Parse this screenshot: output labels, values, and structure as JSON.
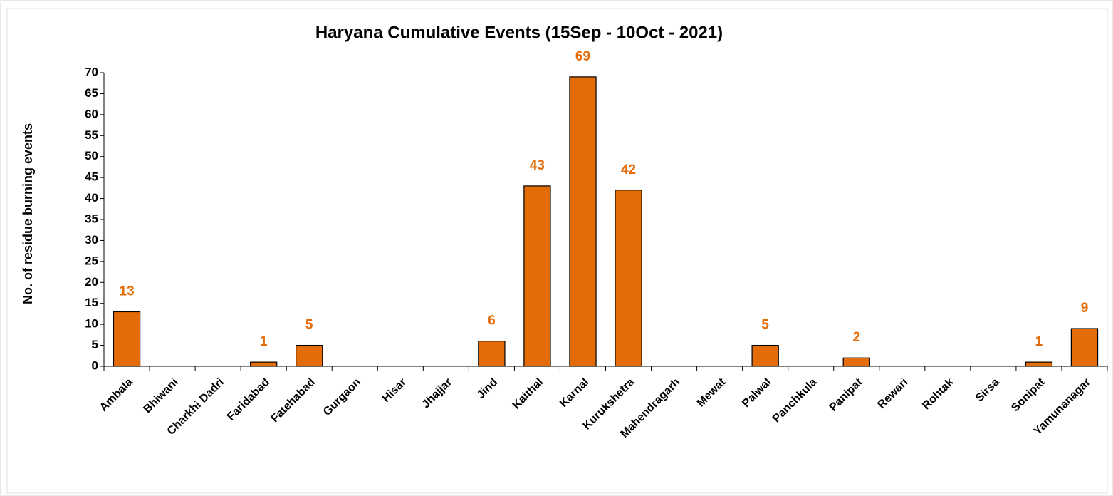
{
  "chart_data": {
    "type": "bar",
    "title": "Haryana Cumulative Events (15Sep - 10Oct - 2021)",
    "y_label": "No. of residue burning events",
    "categories": [
      "Ambala",
      "Bhiwani",
      "Charkhi Dadri",
      "Faridabad",
      "Fatehabad",
      "Gurgaon",
      "Hisar",
      "Jhajjar",
      "Jind",
      "Kaithal",
      "Karnal",
      "Kurukshetra",
      "Mahendragarh",
      "Mewat",
      "Palwal",
      "Panchkula",
      "Panipat",
      "Rewari",
      "Rohtak",
      "Sirsa",
      "Sonipat",
      "Yamunanagar"
    ],
    "values": [
      13,
      0,
      0,
      1,
      5,
      0,
      0,
      0,
      6,
      43,
      69,
      42,
      0,
      0,
      5,
      0,
      2,
      0,
      0,
      0,
      1,
      9
    ],
    "color": "#e36c09",
    "ylim": [
      0,
      70
    ],
    "yticks": [
      0,
      5,
      10,
      15,
      20,
      25,
      30,
      35,
      40,
      45,
      50,
      55,
      60,
      65,
      70
    ],
    "grid": false
  }
}
